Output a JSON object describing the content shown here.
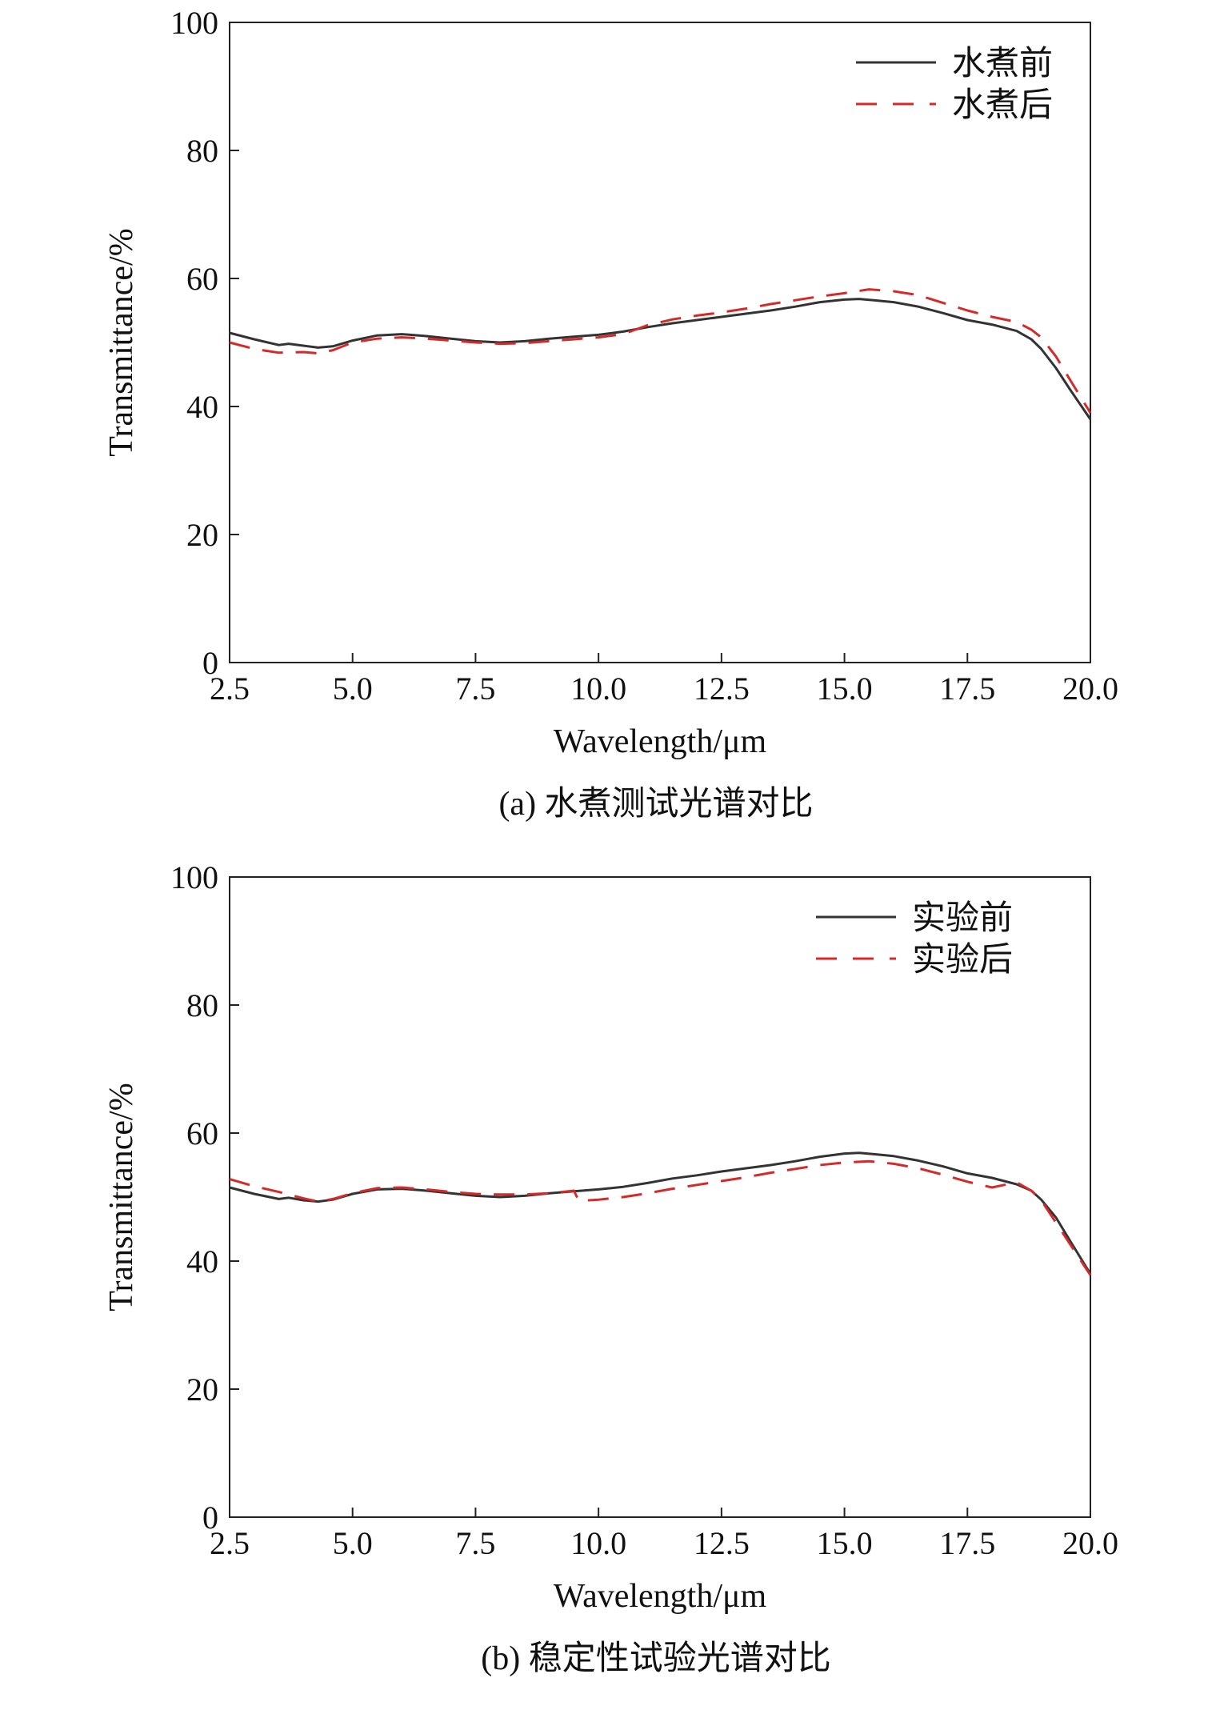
{
  "chart_data": [
    {
      "type": "line",
      "caption": "(a) 水煮测试光谱对比",
      "xlabel": "Wavelength/μm",
      "ylabel": "Transmittance/%",
      "xlim": [
        2.5,
        20.0
      ],
      "ylim": [
        0,
        100
      ],
      "xticks": [
        "2.5",
        "5.0",
        "7.5",
        "10.0",
        "12.5",
        "15.0",
        "17.5",
        "20.0"
      ],
      "yticks": [
        "0",
        "20",
        "40",
        "60",
        "80",
        "100"
      ],
      "grid": false,
      "legend": "top-right",
      "series": [
        {
          "name": "水煮前",
          "color": "#333333",
          "dash": "solid",
          "x": [
            2.5,
            3.0,
            3.5,
            3.7,
            4.0,
            4.3,
            4.6,
            5.0,
            5.5,
            6.0,
            6.5,
            7.0,
            7.5,
            8.0,
            8.5,
            9.0,
            9.5,
            10.0,
            10.5,
            11.0,
            11.5,
            12.0,
            12.5,
            13.0,
            13.5,
            14.0,
            14.5,
            15.0,
            15.3,
            15.6,
            16.0,
            16.5,
            17.0,
            17.5,
            18.0,
            18.5,
            18.8,
            19.0,
            19.3,
            19.6,
            20.0
          ],
          "y": [
            51.5,
            50.5,
            49.6,
            49.8,
            49.5,
            49.2,
            49.4,
            50.3,
            51.1,
            51.3,
            51.0,
            50.6,
            50.2,
            50.0,
            50.2,
            50.6,
            50.9,
            51.2,
            51.7,
            52.4,
            53.0,
            53.5,
            54.0,
            54.5,
            55.0,
            55.6,
            56.3,
            56.7,
            56.8,
            56.6,
            56.3,
            55.6,
            54.6,
            53.5,
            52.8,
            51.8,
            50.5,
            49.0,
            46.0,
            42.5,
            38.0
          ]
        },
        {
          "name": "水煮后",
          "color": "#d42a2a",
          "dash": "dashed",
          "x": [
            2.5,
            3.0,
            3.5,
            4.0,
            4.3,
            4.6,
            5.0,
            5.5,
            6.0,
            6.5,
            7.0,
            7.5,
            8.0,
            8.5,
            9.0,
            9.5,
            10.0,
            10.5,
            11.0,
            11.5,
            12.0,
            12.5,
            13.0,
            13.5,
            14.0,
            14.5,
            15.0,
            15.5,
            16.0,
            16.5,
            17.0,
            17.5,
            18.0,
            18.5,
            18.8,
            19.0,
            19.3,
            19.6,
            20.0
          ],
          "y": [
            50.0,
            49.0,
            48.4,
            48.5,
            48.3,
            48.8,
            50.0,
            50.6,
            50.8,
            50.6,
            50.3,
            50.0,
            49.8,
            49.9,
            50.2,
            50.5,
            50.8,
            51.3,
            52.7,
            53.6,
            54.2,
            54.7,
            55.3,
            56.0,
            56.6,
            57.2,
            57.7,
            58.3,
            58.0,
            57.4,
            56.2,
            55.0,
            54.0,
            53.2,
            52.0,
            50.8,
            47.8,
            44.0,
            39.0
          ]
        }
      ]
    },
    {
      "type": "line",
      "caption": "(b) 稳定性试验光谱对比",
      "xlabel": "Wavelength/μm",
      "ylabel": "Transmittance/%",
      "xlim": [
        2.5,
        20.0
      ],
      "ylim": [
        0,
        100
      ],
      "xticks": [
        "2.5",
        "5.0",
        "7.5",
        "10.0",
        "12.5",
        "15.0",
        "17.5",
        "20.0"
      ],
      "yticks": [
        "0",
        "20",
        "40",
        "60",
        "80",
        "100"
      ],
      "grid": false,
      "legend": "top-right",
      "series": [
        {
          "name": "实验前",
          "color": "#333333",
          "dash": "solid",
          "x": [
            2.5,
            3.0,
            3.5,
            3.7,
            4.0,
            4.3,
            4.6,
            5.0,
            5.5,
            6.0,
            6.5,
            7.0,
            7.5,
            8.0,
            8.5,
            9.0,
            9.5,
            10.0,
            10.5,
            11.0,
            11.5,
            12.0,
            12.5,
            13.0,
            13.5,
            14.0,
            14.5,
            15.0,
            15.3,
            15.6,
            16.0,
            16.5,
            17.0,
            17.5,
            18.0,
            18.5,
            18.8,
            19.0,
            19.3,
            19.6,
            20.0
          ],
          "y": [
            51.5,
            50.5,
            49.7,
            49.9,
            49.5,
            49.3,
            49.6,
            50.5,
            51.2,
            51.3,
            51.0,
            50.6,
            50.2,
            50.0,
            50.2,
            50.6,
            50.9,
            51.2,
            51.6,
            52.2,
            52.9,
            53.4,
            54.0,
            54.5,
            55.0,
            55.6,
            56.3,
            56.8,
            56.9,
            56.7,
            56.4,
            55.7,
            54.8,
            53.7,
            53.0,
            52.0,
            51.0,
            49.6,
            46.8,
            43.0,
            38.0
          ]
        },
        {
          "name": "实验后",
          "color": "#d42a2a",
          "dash": "dashed",
          "x": [
            2.5,
            3.0,
            3.5,
            4.0,
            4.3,
            4.6,
            5.0,
            5.5,
            6.0,
            6.5,
            7.0,
            7.5,
            8.0,
            8.5,
            9.0,
            9.5,
            9.6,
            10.0,
            10.5,
            11.0,
            11.5,
            12.0,
            12.5,
            13.0,
            13.5,
            14.0,
            14.5,
            15.0,
            15.5,
            16.0,
            16.5,
            17.0,
            17.5,
            18.0,
            18.5,
            18.8,
            19.0,
            19.3,
            19.6,
            20.0
          ],
          "y": [
            52.8,
            51.7,
            50.8,
            49.8,
            49.3,
            49.7,
            50.6,
            51.4,
            51.5,
            51.2,
            50.8,
            50.5,
            50.4,
            50.4,
            50.6,
            51.0,
            49.4,
            49.6,
            50.0,
            50.6,
            51.3,
            51.9,
            52.5,
            53.1,
            53.8,
            54.4,
            55.0,
            55.4,
            55.6,
            55.2,
            54.5,
            53.5,
            52.4,
            51.5,
            52.3,
            51.0,
            49.5,
            46.0,
            42.5,
            37.8
          ]
        }
      ]
    }
  ]
}
